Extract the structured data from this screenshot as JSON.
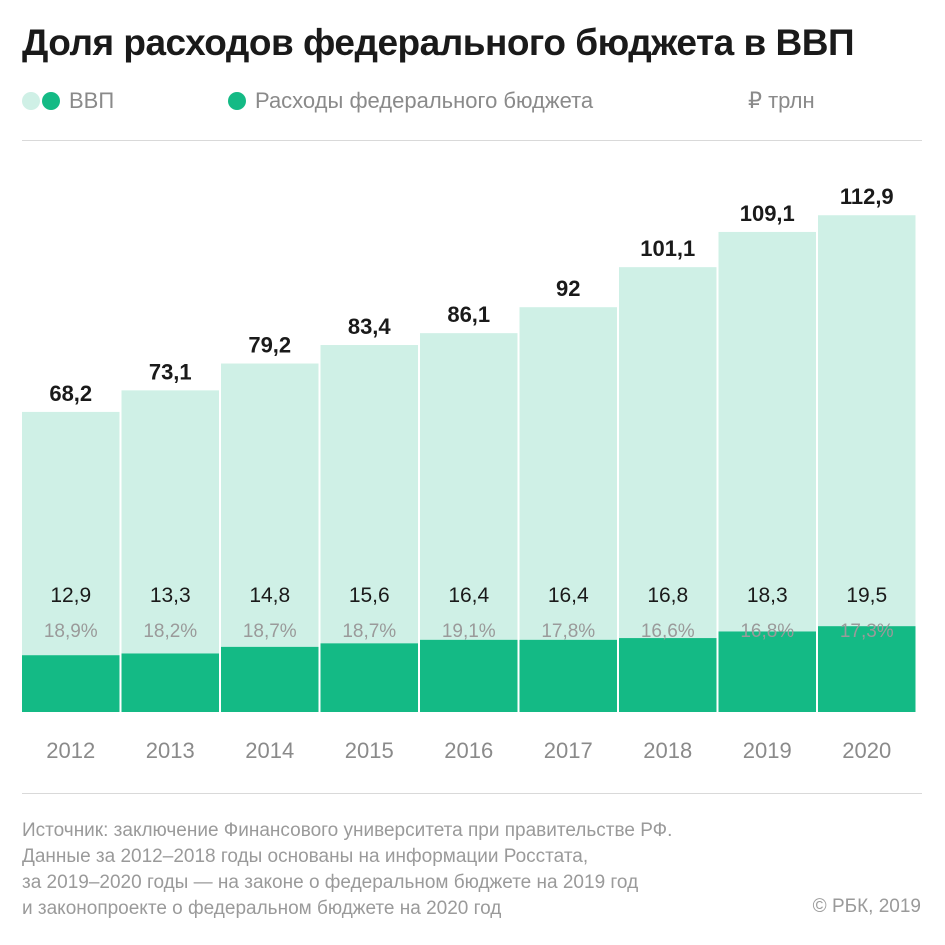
{
  "title": "Доля расходов федерального бюджета в ВВП",
  "legend": {
    "gdp_label": "ВВП",
    "spending_label": "Расходы федерального бюджета",
    "unit": "₽ трлн"
  },
  "colors": {
    "gdp": "#cff0e6",
    "spending": "#14ba85",
    "value_text": "#1a1a1a",
    "share_text": "#9a9a9a",
    "year_text": "#8a8a8a"
  },
  "chart_data": {
    "type": "bar",
    "stacked_overlay": true,
    "categories": [
      "2012",
      "2013",
      "2014",
      "2015",
      "2016",
      "2017",
      "2018",
      "2019",
      "2020"
    ],
    "series": [
      {
        "name": "ВВП",
        "values": [
          68.2,
          73.1,
          79.2,
          83.4,
          86.1,
          92,
          101.1,
          109.1,
          112.9
        ],
        "labels": [
          "68,2",
          "73,1",
          "79,2",
          "83,4",
          "86,1",
          "92",
          "101,1",
          "109,1",
          "112,9"
        ]
      },
      {
        "name": "Расходы федерального бюджета",
        "values": [
          12.9,
          13.3,
          14.8,
          15.6,
          16.4,
          16.4,
          16.8,
          18.3,
          19.5
        ],
        "labels": [
          "12,9",
          "13,3",
          "14,8",
          "15,6",
          "16,4",
          "16,4",
          "16,8",
          "18,3",
          "19,5"
        ]
      }
    ],
    "shares": [
      "18,9%",
      "18,2%",
      "18,7%",
      "18,7%",
      "19,1%",
      "17,8%",
      "16,6%",
      "16,8%",
      "17,3%"
    ],
    "unit": "₽ трлн",
    "ylim": [
      0,
      112.9
    ],
    "grid": false
  },
  "source": {
    "lines": [
      "Источник: заключение Финансового университета при правительстве РФ.",
      "Данные за 2012–2018 годы основаны на информации Росстата,",
      "за 2019–2020 годы — на законе о федеральном бюджете на 2019 год",
      "и законопроекте о федеральном бюджете на 2020 год"
    ],
    "copyright": "© РБК, 2019"
  }
}
